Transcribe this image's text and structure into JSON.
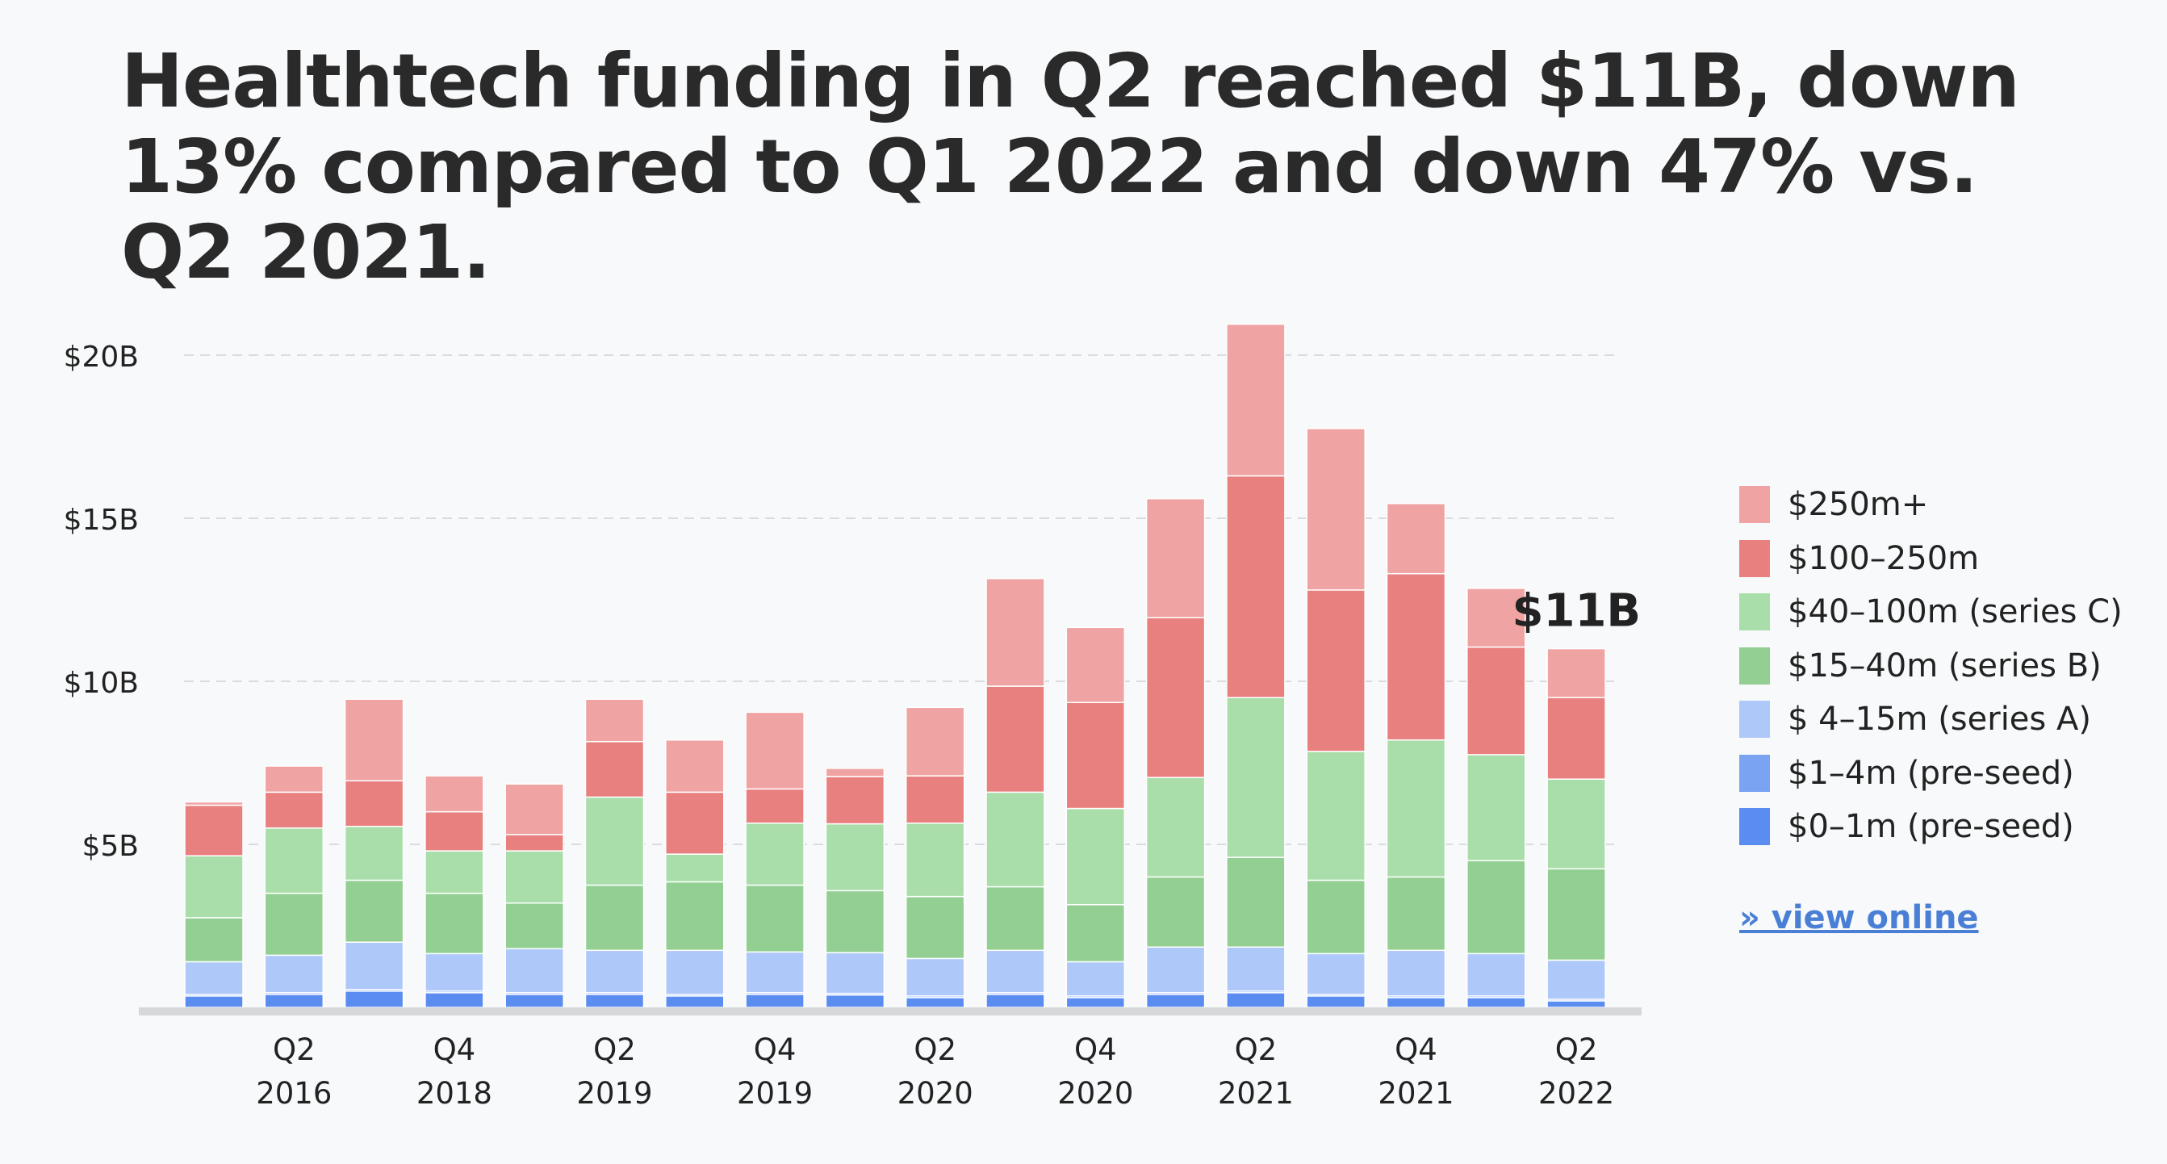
{
  "title": "Healthtech funding in Q2 reached $11B, down 13% compared to Q1 2022 and down 47% vs. Q2 2021.",
  "view_online": "» view online",
  "chart_data": {
    "type": "bar",
    "stacked": true,
    "title": "",
    "xlabel": "",
    "ylabel": "",
    "ylim": [
      0,
      21
    ],
    "yticks": [
      "$5B",
      "$10B",
      "$15B",
      "$20B"
    ],
    "ytick_values": [
      5,
      10,
      15,
      20
    ],
    "grid": "horizontal dashed",
    "legend_position": "right",
    "x_tick_labels": [
      {
        "index": 1,
        "line1": "Q2",
        "line2": "2016"
      },
      {
        "index": 3,
        "line1": "Q4",
        "line2": "2018"
      },
      {
        "index": 5,
        "line1": "Q2",
        "line2": "2019"
      },
      {
        "index": 7,
        "line1": "Q4",
        "line2": "2019"
      },
      {
        "index": 9,
        "line1": "Q2",
        "line2": "2020"
      },
      {
        "index": 11,
        "line1": "Q4",
        "line2": "2020"
      },
      {
        "index": 13,
        "line1": "Q2",
        "line2": "2021"
      },
      {
        "index": 15,
        "line1": "Q4",
        "line2": "2021"
      },
      {
        "index": 17,
        "line1": "Q2",
        "line2": "2022"
      }
    ],
    "annotation": {
      "index": 17,
      "text": "$11B"
    },
    "series": [
      {
        "name": "$0–1m (pre-seed)",
        "color": "#5b8cef",
        "values": [
          0.35,
          0.4,
          0.5,
          0.45,
          0.4,
          0.4,
          0.35,
          0.4,
          0.38,
          0.3,
          0.4,
          0.3,
          0.4,
          0.45,
          0.35,
          0.3,
          0.3,
          0.2
        ]
      },
      {
        "name": "$1–4m (pre-seed)",
        "color": "#7aa3f2",
        "values": [
          0.05,
          0.05,
          0.05,
          0.05,
          0.05,
          0.05,
          0.05,
          0.05,
          0.05,
          0.05,
          0.05,
          0.05,
          0.05,
          0.05,
          0.05,
          0.05,
          0.05,
          0.05
        ]
      },
      {
        "name": "$ 4–15m (series A)",
        "color": "#aec8f9",
        "values": [
          1.0,
          1.15,
          1.45,
          1.15,
          1.35,
          1.3,
          1.35,
          1.25,
          1.25,
          1.15,
          1.3,
          1.05,
          1.4,
          1.35,
          1.25,
          1.4,
          1.3,
          1.2
        ]
      },
      {
        "name": "$15–40m (series B)",
        "color": "#93cf93",
        "values": [
          1.35,
          1.9,
          1.9,
          1.85,
          1.4,
          2.0,
          2.1,
          2.05,
          1.9,
          1.9,
          1.95,
          1.75,
          2.15,
          2.75,
          2.25,
          2.25,
          2.85,
          2.8
        ]
      },
      {
        "name": "$40–100m (series C)",
        "color": "#a9deaa",
        "values": [
          1.9,
          2.0,
          1.65,
          1.3,
          1.6,
          2.7,
          0.85,
          1.9,
          2.05,
          2.25,
          2.9,
          2.95,
          3.05,
          4.9,
          3.95,
          4.2,
          3.25,
          2.75
        ]
      },
      {
        "name": "$100–250m",
        "color": "#e98080",
        "values": [
          1.55,
          1.1,
          1.4,
          1.2,
          0.5,
          1.7,
          1.9,
          1.05,
          1.45,
          1.45,
          3.25,
          3.25,
          4.9,
          6.8,
          4.95,
          5.1,
          3.3,
          2.5
        ]
      },
      {
        "name": "$250m+",
        "color": "#f0a3a3",
        "values": [
          0.1,
          0.8,
          2.5,
          1.1,
          1.55,
          1.3,
          1.6,
          2.35,
          0.25,
          2.1,
          3.3,
          2.3,
          3.65,
          4.65,
          4.95,
          2.15,
          1.8,
          1.5
        ]
      }
    ]
  }
}
